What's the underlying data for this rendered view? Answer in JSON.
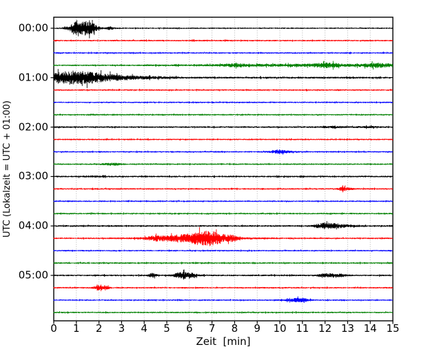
{
  "figure": {
    "xlabel": "Zeit  [min]",
    "ylabel": "UTC (Lokalzeit = UTC + 01:00)"
  },
  "chart_data": {
    "type": "line",
    "subtype": "helicorder-seismogram-drum-plot",
    "title": "",
    "xlabel": "Zeit  [min]",
    "ylabel": "UTC (Lokalzeit = UTC + 01:00)",
    "xlim": [
      0,
      15
    ],
    "xtick_labels": [
      "0",
      "1",
      "2",
      "3",
      "4",
      "5",
      "6",
      "7",
      "8",
      "9",
      "10",
      "11",
      "12",
      "13",
      "14",
      "15"
    ],
    "ytick_labels": [
      "00:00",
      "01:00",
      "02:00",
      "03:00",
      "04:00",
      "05:00"
    ],
    "grid": {
      "vertical": true,
      "horizontal": false,
      "style": "dotted",
      "color": "#a9a9a9"
    },
    "minutes_per_trace": 15,
    "color_cycle": [
      "#000000",
      "#ff0000",
      "#0000ff",
      "#008000"
    ],
    "traces": [
      {
        "utc": "00:00",
        "color": "#000000",
        "base": 0.9,
        "events": [
          {
            "t": 1.0,
            "w": 0.18,
            "a": 8.0
          },
          {
            "t": 1.3,
            "w": 0.45,
            "a": 3.0
          },
          {
            "t": 1.45,
            "w": 0.15,
            "a": 5.5
          },
          {
            "t": 1.75,
            "w": 0.12,
            "a": 4.0
          },
          {
            "t": 2.5,
            "w": 0.12,
            "a": 1.6
          }
        ]
      },
      {
        "utc": "00:15",
        "color": "#ff0000",
        "base": 1.0,
        "events": []
      },
      {
        "utc": "00:30",
        "color": "#0000ff",
        "base": 0.95,
        "events": []
      },
      {
        "utc": "00:45",
        "color": "#008000",
        "base": 1.0,
        "events": [
          {
            "t": 11.3,
            "w": 3.2,
            "a": 1.1
          },
          {
            "t": 8.0,
            "w": 0.4,
            "a": 1.2
          },
          {
            "t": 12.1,
            "w": 0.35,
            "a": 2.0
          },
          {
            "t": 14.3,
            "w": 0.45,
            "a": 2.0
          }
        ]
      },
      {
        "utc": "01:00",
        "color": "#000000",
        "base": 1.25,
        "events": [
          {
            "t": 0.4,
            "w": 0.5,
            "a": 5.5
          },
          {
            "t": 1.3,
            "w": 0.6,
            "a": 5.5
          },
          {
            "t": 2.4,
            "w": 0.7,
            "a": 2.5
          },
          {
            "t": 3.8,
            "w": 1.0,
            "a": 1.0
          }
        ]
      },
      {
        "utc": "01:15",
        "color": "#ff0000",
        "base": 1.0,
        "events": []
      },
      {
        "utc": "01:30",
        "color": "#0000ff",
        "base": 0.95,
        "events": []
      },
      {
        "utc": "01:45",
        "color": "#008000",
        "base": 1.0,
        "events": []
      },
      {
        "utc": "02:00",
        "color": "#000000",
        "base": 1.1,
        "events": [
          {
            "t": 12.4,
            "w": 0.4,
            "a": 0.7
          },
          {
            "t": 13.9,
            "w": 0.3,
            "a": 0.6
          }
        ]
      },
      {
        "utc": "02:15",
        "color": "#ff0000",
        "base": 1.0,
        "events": []
      },
      {
        "utc": "02:30",
        "color": "#0000ff",
        "base": 0.95,
        "events": [
          {
            "t": 10.0,
            "w": 0.35,
            "a": 1.6
          }
        ]
      },
      {
        "utc": "02:45",
        "color": "#008000",
        "base": 1.0,
        "events": [
          {
            "t": 2.6,
            "w": 0.3,
            "a": 1.1
          }
        ]
      },
      {
        "utc": "03:00",
        "color": "#000000",
        "base": 1.1,
        "events": [
          {
            "t": 1.85,
            "w": 0.3,
            "a": 0.6
          }
        ]
      },
      {
        "utc": "03:15",
        "color": "#ff0000",
        "base": 1.0,
        "events": [
          {
            "t": 12.75,
            "w": 0.1,
            "a": 2.6
          },
          {
            "t": 13.0,
            "w": 0.15,
            "a": 1.1
          }
        ]
      },
      {
        "utc": "03:30",
        "color": "#0000ff",
        "base": 0.95,
        "events": []
      },
      {
        "utc": "03:45",
        "color": "#008000",
        "base": 1.0,
        "events": []
      },
      {
        "utc": "04:00",
        "color": "#000000",
        "base": 1.1,
        "events": [
          {
            "t": 11.85,
            "w": 0.2,
            "a": 3.0
          },
          {
            "t": 12.35,
            "w": 0.25,
            "a": 2.6
          },
          {
            "t": 12.9,
            "w": 0.3,
            "a": 1.0
          }
        ]
      },
      {
        "utc": "04:15",
        "color": "#ff0000",
        "base": 1.0,
        "events": [
          {
            "t": 4.5,
            "w": 0.3,
            "a": 2.3
          },
          {
            "t": 5.3,
            "w": 0.35,
            "a": 2.0
          },
          {
            "t": 5.9,
            "w": 0.3,
            "a": 2.8
          },
          {
            "t": 6.55,
            "w": 0.35,
            "a": 6.0
          },
          {
            "t": 7.0,
            "w": 0.3,
            "a": 4.5
          },
          {
            "t": 7.45,
            "w": 0.25,
            "a": 2.8
          },
          {
            "t": 7.95,
            "w": 0.18,
            "a": 2.6
          },
          {
            "t": 6.3,
            "w": 1.6,
            "a": 1.3
          }
        ]
      },
      {
        "utc": "04:30",
        "color": "#0000ff",
        "base": 0.95,
        "events": []
      },
      {
        "utc": "04:45",
        "color": "#008000",
        "base": 1.0,
        "events": []
      },
      {
        "utc": "05:00",
        "color": "#000000",
        "base": 1.1,
        "events": [
          {
            "t": 4.35,
            "w": 0.12,
            "a": 2.2
          },
          {
            "t": 5.55,
            "w": 0.2,
            "a": 2.4
          },
          {
            "t": 5.95,
            "w": 0.25,
            "a": 3.0
          },
          {
            "t": 12.1,
            "w": 0.3,
            "a": 1.6
          },
          {
            "t": 12.6,
            "w": 0.25,
            "a": 1.5
          }
        ]
      },
      {
        "utc": "05:15",
        "color": "#ff0000",
        "base": 1.0,
        "events": [
          {
            "t": 2.0,
            "w": 0.15,
            "a": 2.6
          },
          {
            "t": 2.35,
            "w": 0.1,
            "a": 1.4
          }
        ]
      },
      {
        "utc": "05:30",
        "color": "#0000ff",
        "base": 0.95,
        "events": [
          {
            "t": 10.7,
            "w": 0.3,
            "a": 1.7
          },
          {
            "t": 11.05,
            "w": 0.2,
            "a": 1.2
          }
        ]
      },
      {
        "utc": "05:45",
        "color": "#008000",
        "base": 1.0,
        "events": []
      }
    ]
  }
}
